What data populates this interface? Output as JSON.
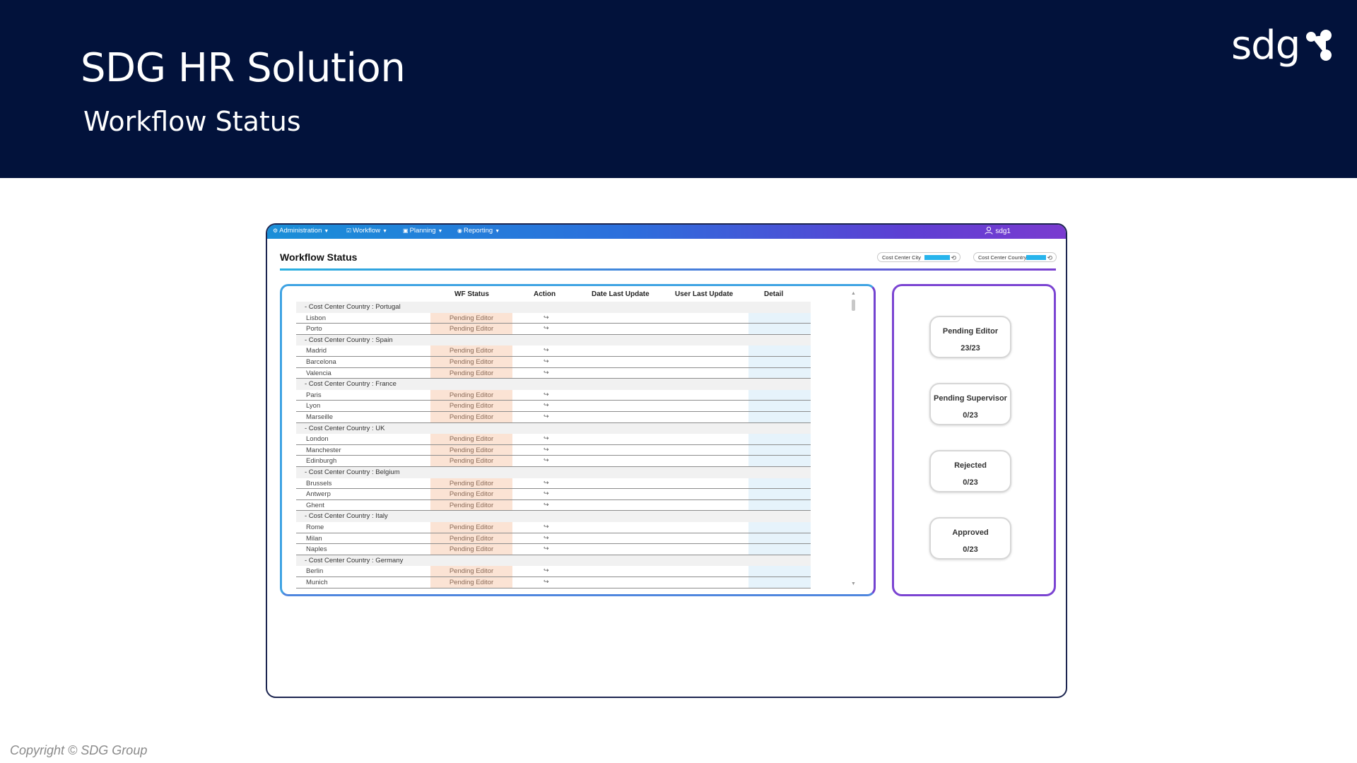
{
  "banner": {
    "title": "SDG HR Solution",
    "subtitle": "Workflow Status",
    "logo_text": "sdg"
  },
  "footer": {
    "copyright": "Copyright © SDG Group"
  },
  "colors": {
    "banner_bg": "#02123b",
    "accent_blue": "#27b4ec",
    "accent_purple": "#7b44d2",
    "status_bg": "#fbe3d4",
    "detail_bg": "#e6f3fb"
  },
  "app": {
    "menu": [
      {
        "icon": "gear-icon",
        "glyph": "⚙",
        "label": "Administration"
      },
      {
        "icon": "checkbox-icon",
        "glyph": "☑",
        "label": "Workflow"
      },
      {
        "icon": "save-icon",
        "glyph": "▣",
        "label": "Planning"
      },
      {
        "icon": "eye-icon",
        "glyph": "◉",
        "label": "Reporting"
      }
    ],
    "user": "sdg1",
    "page_title": "Workflow Status",
    "filters": [
      {
        "label": "Cost Center City"
      },
      {
        "label": "Cost Center Country"
      }
    ],
    "table": {
      "headers": {
        "status": "WF Status",
        "action": "Action",
        "date": "Date Last Update",
        "user": "User Last Update",
        "detail": "Detail"
      },
      "action_glyph": "↪",
      "groups": [
        {
          "label": "Cost Center Country : Portugal",
          "rows": [
            {
              "city": "Lisbon",
              "status": "Pending Editor"
            },
            {
              "city": "Porto",
              "status": "Pending Editor"
            }
          ]
        },
        {
          "label": "Cost Center Country : Spain",
          "rows": [
            {
              "city": "Madrid",
              "status": "Pending Editor"
            },
            {
              "city": "Barcelona",
              "status": "Pending Editor"
            },
            {
              "city": "Valencia",
              "status": "Pending Editor"
            }
          ]
        },
        {
          "label": "Cost Center Country : France",
          "rows": [
            {
              "city": "Paris",
              "status": "Pending Editor"
            },
            {
              "city": "Lyon",
              "status": "Pending Editor"
            },
            {
              "city": "Marseille",
              "status": "Pending Editor"
            }
          ]
        },
        {
          "label": "Cost Center Country : UK",
          "rows": [
            {
              "city": "London",
              "status": "Pending Editor"
            },
            {
              "city": "Manchester",
              "status": "Pending Editor"
            },
            {
              "city": "Edinburgh",
              "status": "Pending Editor"
            }
          ]
        },
        {
          "label": "Cost Center Country : Belgium",
          "rows": [
            {
              "city": "Brussels",
              "status": "Pending Editor"
            },
            {
              "city": "Antwerp",
              "status": "Pending Editor"
            },
            {
              "city": "Ghent",
              "status": "Pending Editor"
            }
          ]
        },
        {
          "label": "Cost Center Country : Italy",
          "rows": [
            {
              "city": "Rome",
              "status": "Pending Editor"
            },
            {
              "city": "Milan",
              "status": "Pending Editor"
            },
            {
              "city": "Naples",
              "status": "Pending Editor"
            }
          ]
        },
        {
          "label": "Cost Center Country : Germany",
          "rows": [
            {
              "city": "Berlin",
              "status": "Pending Editor"
            },
            {
              "city": "Munich",
              "status": "Pending Editor"
            }
          ]
        }
      ]
    },
    "summary": [
      {
        "label": "Pending Editor",
        "value": "23/23"
      },
      {
        "label": "Pending Supervisor",
        "value": "0/23"
      },
      {
        "label": "Rejected",
        "value": "0/23"
      },
      {
        "label": "Approved",
        "value": "0/23"
      }
    ]
  }
}
